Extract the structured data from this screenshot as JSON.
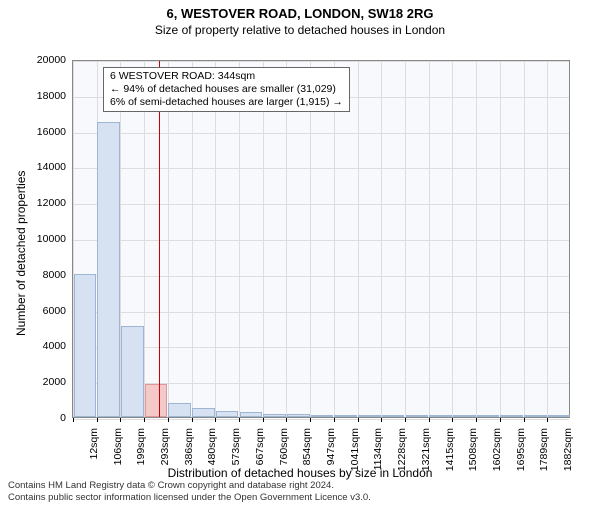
{
  "title": "6, WESTOVER ROAD, LONDON, SW18 2RG",
  "subtitle": "Size of property relative to detached houses in London",
  "y_axis_label": "Number of detached properties",
  "x_axis_label": "Distribution of detached houses by size in London",
  "y_ticks": [
    0,
    2000,
    4000,
    6000,
    8000,
    10000,
    12000,
    14000,
    16000,
    18000,
    20000
  ],
  "y_max": 20000,
  "x_ticks": [
    "12sqm",
    "106sqm",
    "199sqm",
    "293sqm",
    "386sqm",
    "480sqm",
    "573sqm",
    "667sqm",
    "760sqm",
    "854sqm",
    "947sqm",
    "1041sqm",
    "1134sqm",
    "1228sqm",
    "1321sqm",
    "1415sqm",
    "1508sqm",
    "1602sqm",
    "1695sqm",
    "1789sqm",
    "1882sqm"
  ],
  "bars": {
    "values": [
      8000,
      16500,
      5100,
      1850,
      780,
      480,
      340,
      260,
      190,
      150,
      110,
      90,
      70,
      55,
      45,
      38,
      32,
      28,
      25,
      22,
      20
    ],
    "color": "#d6e2f2",
    "border_color": "#9fb5d4",
    "highlight_index": 3,
    "highlight_color": "#f5c9c9",
    "highlight_border": "#d99"
  },
  "marker": {
    "position_sqm": 344,
    "x_min": 12,
    "x_max": 1929,
    "color": "#cc0000"
  },
  "annotation": {
    "line1": "6 WESTOVER ROAD: 344sqm",
    "line2": "← 94% of detached houses are smaller (31,029)",
    "line3": "6% of semi-detached houses are larger (1,915) →"
  },
  "footer_line1": "Contains HM Land Registry data © Crown copyright and database right 2024.",
  "footer_line2": "Contains public sector information licensed under the Open Government Licence v3.0.",
  "plot_bg": "#f7f9fc"
}
